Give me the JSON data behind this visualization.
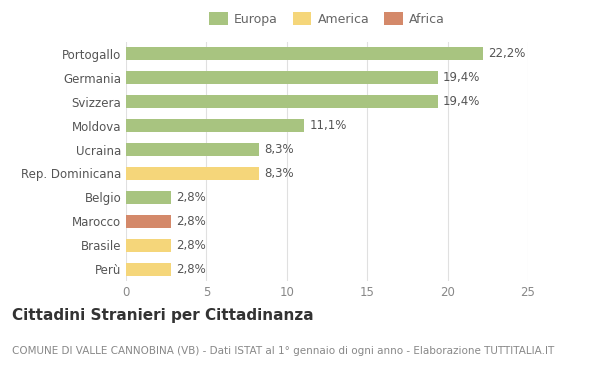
{
  "categories": [
    "Portogallo",
    "Germania",
    "Svizzera",
    "Moldova",
    "Ucraina",
    "Rep. Dominicana",
    "Belgio",
    "Marocco",
    "Brasile",
    "Perù"
  ],
  "values": [
    22.2,
    19.4,
    19.4,
    11.1,
    8.3,
    8.3,
    2.8,
    2.8,
    2.8,
    2.8
  ],
  "labels": [
    "22,2%",
    "19,4%",
    "19,4%",
    "11,1%",
    "8,3%",
    "8,3%",
    "2,8%",
    "2,8%",
    "2,8%",
    "2,8%"
  ],
  "colors": [
    "#a8c480",
    "#a8c480",
    "#a8c480",
    "#a8c480",
    "#a8c480",
    "#f5d67a",
    "#a8c480",
    "#d4896a",
    "#f5d67a",
    "#f5d67a"
  ],
  "legend_labels": [
    "Europa",
    "America",
    "Africa"
  ],
  "legend_colors": [
    "#a8c480",
    "#f5d67a",
    "#d4896a"
  ],
  "xlim": [
    0,
    25
  ],
  "xticks": [
    0,
    5,
    10,
    15,
    20,
    25
  ],
  "title": "Cittadini Stranieri per Cittadinanza",
  "subtitle": "COMUNE DI VALLE CANNOBINA (VB) - Dati ISTAT al 1° gennaio di ogni anno - Elaborazione TUTTITALIA.IT",
  "background_color": "#ffffff",
  "grid_color": "#e0e0e0",
  "bar_height": 0.55,
  "label_fontsize": 8.5,
  "ytick_fontsize": 8.5,
  "xtick_fontsize": 8.5,
  "title_fontsize": 11,
  "subtitle_fontsize": 7.5
}
